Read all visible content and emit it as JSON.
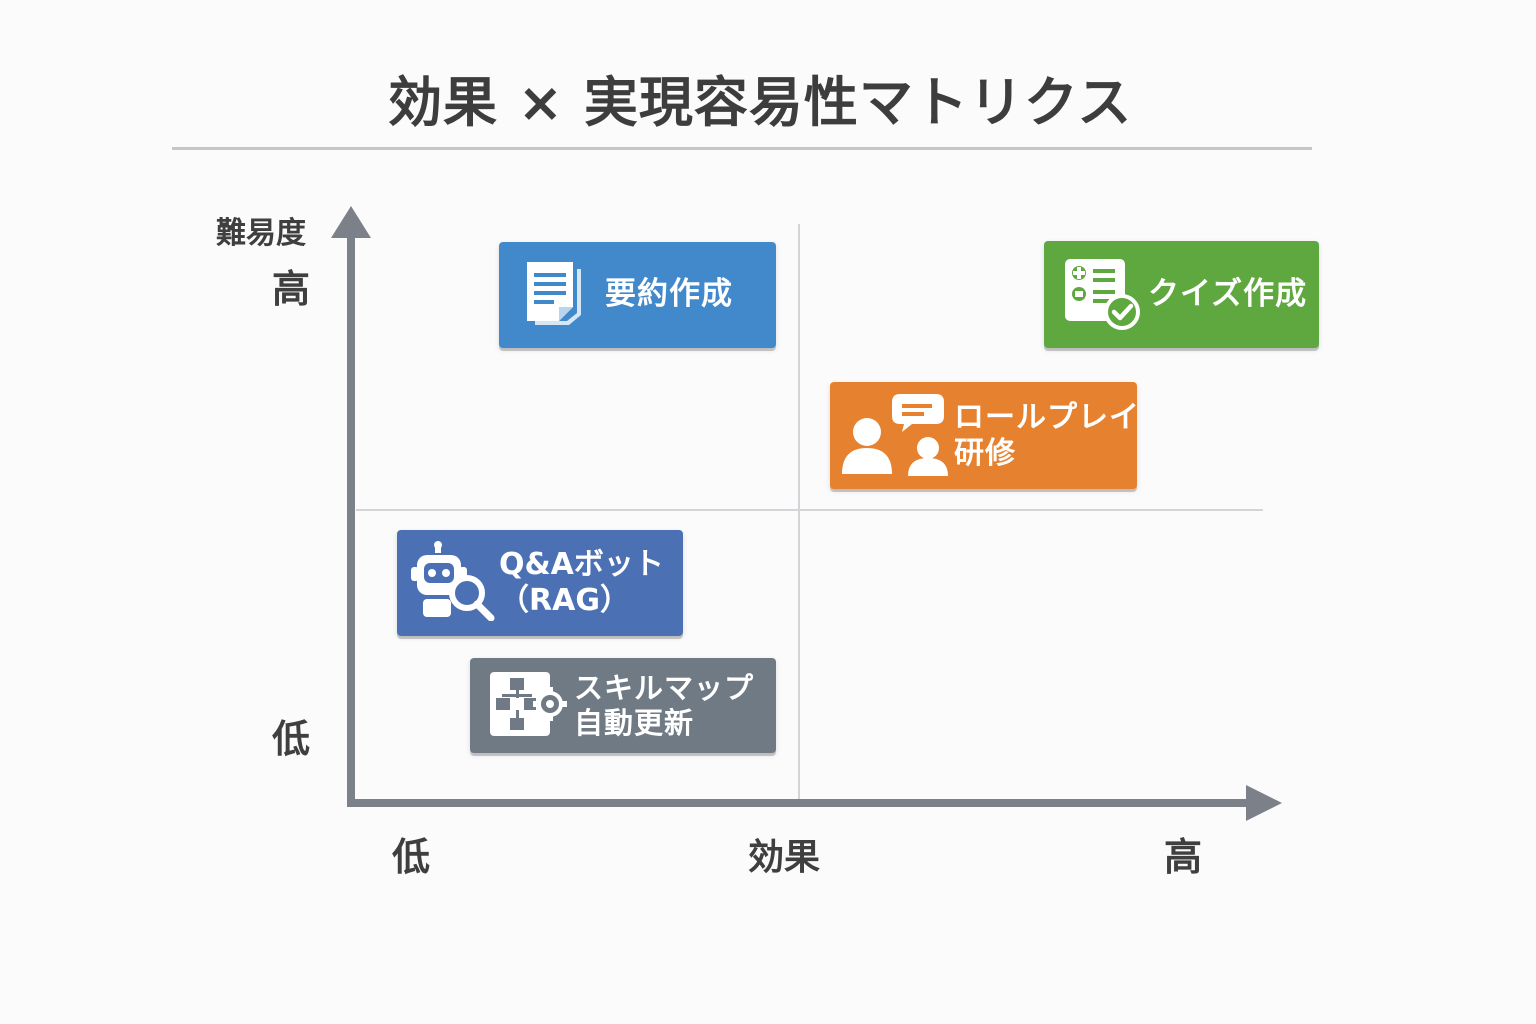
{
  "title": "効果 × 実現容易性マトリクス",
  "y_axis": {
    "title": "難易度",
    "high": "高",
    "low": "低"
  },
  "x_axis": {
    "title": "効果",
    "high": "高",
    "low": "低"
  },
  "items": {
    "summary": {
      "lines": [
        "要約作成"
      ],
      "color": "#4189cb",
      "icon": "document-icon",
      "effect": "low",
      "difficulty": "high"
    },
    "quiz": {
      "lines": [
        "クイズ作成"
      ],
      "color": "#5ea83f",
      "icon": "quiz-checklist-icon",
      "effect": "high",
      "difficulty": "high"
    },
    "roleplay": {
      "lines": [
        "ロールプレイ",
        "研修"
      ],
      "color": "#e6822f",
      "icon": "people-chat-icon",
      "effect": "high",
      "difficulty": "high"
    },
    "qa_bot": {
      "lines": [
        "Q&Aボット",
        "（RAG）"
      ],
      "color": "#4b71b4",
      "icon": "robot-search-icon",
      "effect": "low",
      "difficulty": "low"
    },
    "skill_map": {
      "lines": [
        "スキルマップ",
        "自動更新"
      ],
      "color": "#707a84",
      "icon": "flowchart-gear-icon",
      "effect": "low",
      "difficulty": "low"
    }
  }
}
